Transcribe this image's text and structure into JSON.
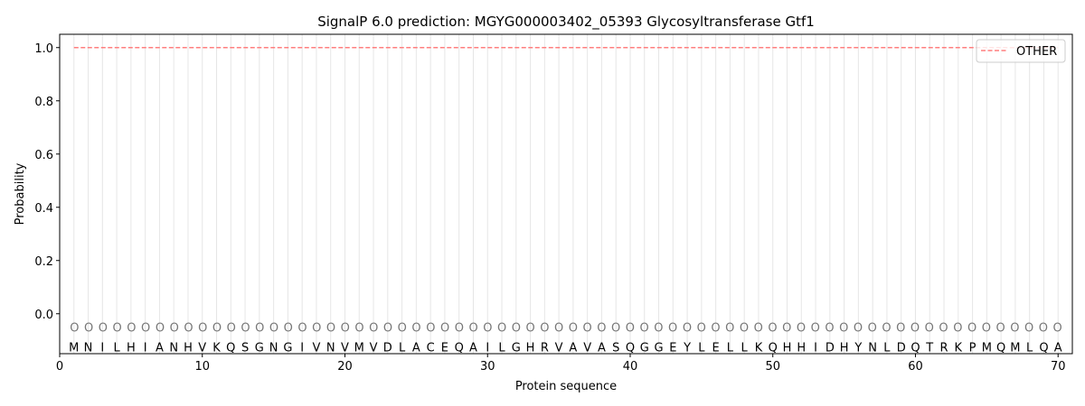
{
  "chart_data": {
    "type": "line",
    "title": "SignalP 6.0 prediction: MGYG000003402_05393 Glycosyltransferase Gtf1",
    "xlabel": "Protein sequence",
    "ylabel": "Probability",
    "xlim": [
      0,
      71
    ],
    "ylim": [
      -0.15,
      1.05
    ],
    "xticks": [
      0,
      10,
      20,
      30,
      40,
      50,
      60,
      70
    ],
    "yticks": [
      "0.0",
      "0.2",
      "0.4",
      "0.6",
      "0.8",
      "1.0"
    ],
    "grid": "vertical lines at each residue",
    "legend_position": "top-right",
    "sequence": [
      "M",
      "N",
      "I",
      "L",
      "H",
      "I",
      "A",
      "N",
      "H",
      "V",
      "K",
      "Q",
      "S",
      "G",
      "N",
      "G",
      "I",
      "V",
      "N",
      "V",
      "M",
      "V",
      "D",
      "L",
      "A",
      "C",
      "E",
      "Q",
      "A",
      "I",
      "L",
      "G",
      "H",
      "R",
      "V",
      "A",
      "V",
      "A",
      "S",
      "Q",
      "G",
      "G",
      "E",
      "Y",
      "L",
      "E",
      "L",
      "L",
      "K",
      "Q",
      "H",
      "H",
      "I",
      "D",
      "H",
      "Y",
      "N",
      "L",
      "D",
      "Q",
      "T",
      "R",
      "K",
      "P",
      "M",
      "Q",
      "M",
      "L",
      "Q",
      "A"
    ],
    "region_labels": "OOOOOOOOOOOOOOOOOOOOOOOOOOOOOOOOOOOOOOOOOOOOOOOOOOOOOOOOOOOOOOOOOOOOOO",
    "series": [
      {
        "name": "OTHER",
        "color": "#ff7f7f",
        "style": "dashed",
        "x_range": [
          1,
          70
        ],
        "value": 1.0
      }
    ]
  }
}
